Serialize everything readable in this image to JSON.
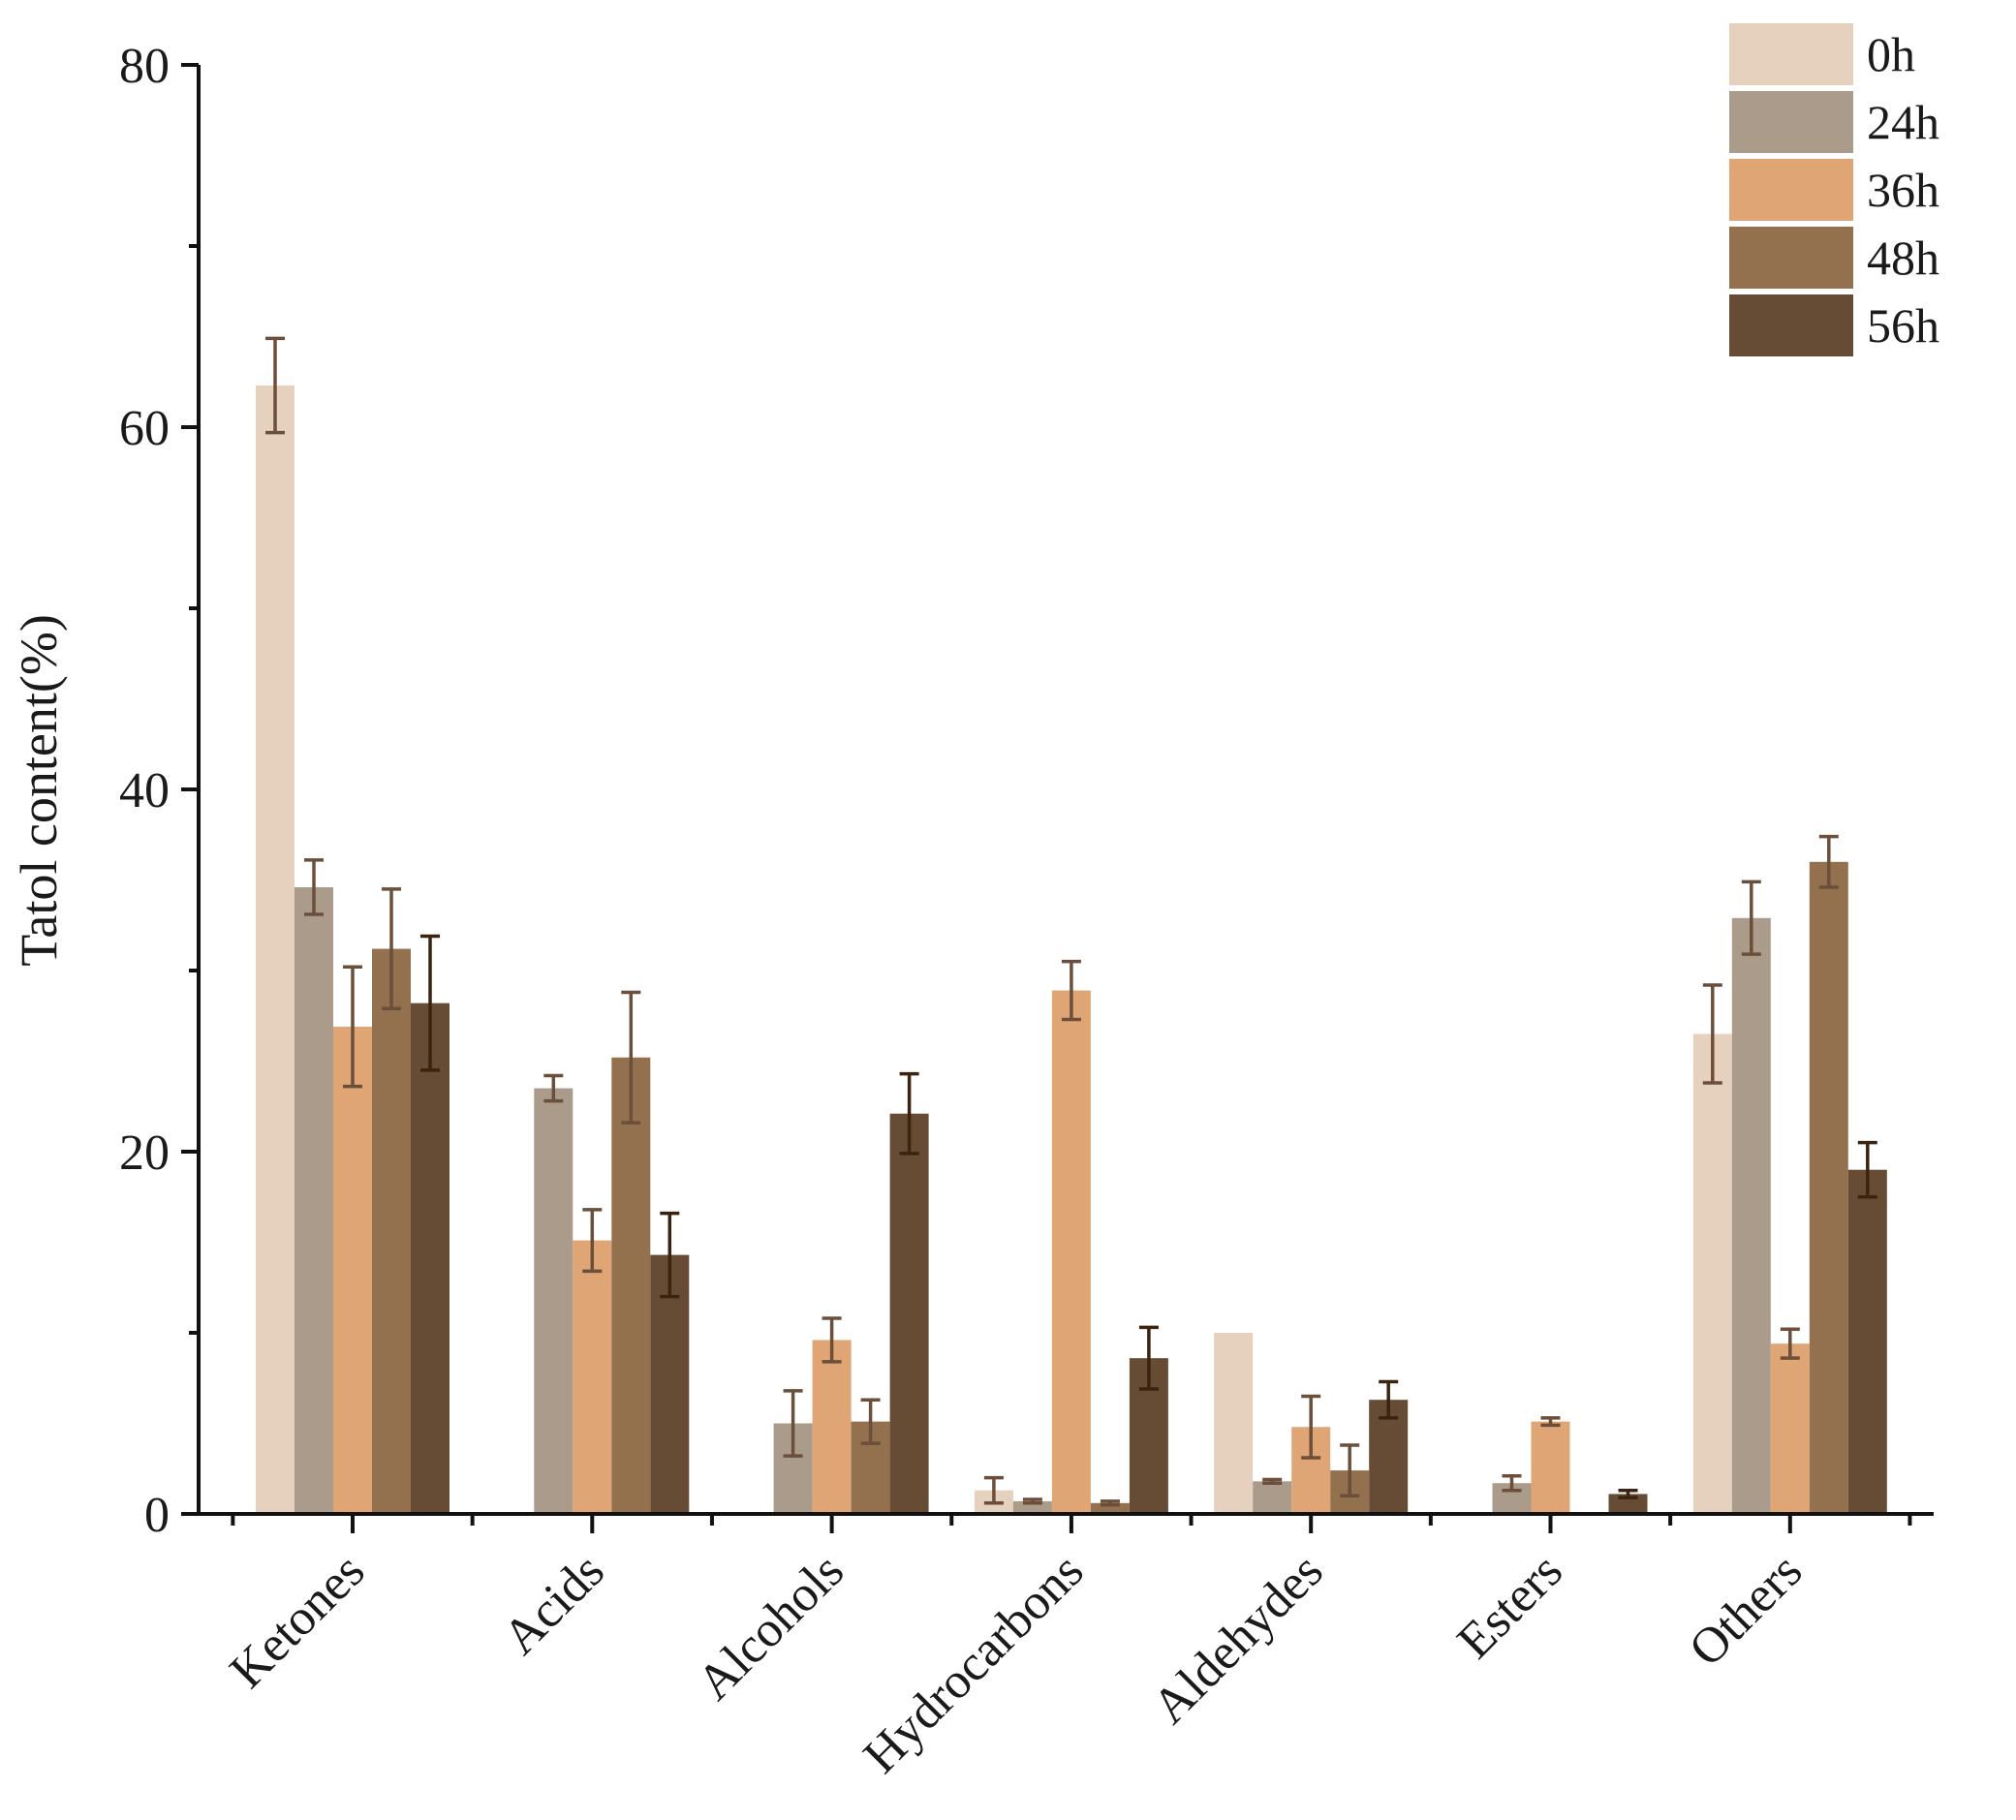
{
  "chart_data": {
    "type": "bar",
    "title": "",
    "xlabel": "",
    "ylabel": "Tatol content(%)",
    "ylim": [
      0,
      80
    ],
    "yticks": [
      0,
      20,
      40,
      60,
      80
    ],
    "grid": false,
    "legend_position": "top-right",
    "categories": [
      "Ketones",
      "Acids",
      "Alcohols",
      "Hydrocarbons",
      "Aldehydes",
      "Esters",
      "Others"
    ],
    "series": [
      {
        "name": "0h",
        "color": "#e6d1bf",
        "error_color": "#6b4f3a",
        "values": [
          62.3,
          0,
          0,
          1.3,
          10.0,
          0,
          26.5
        ],
        "errors": [
          2.6,
          0,
          0,
          0.7,
          0,
          0,
          2.7
        ]
      },
      {
        "name": "24h",
        "color": "#aa9b8b",
        "error_color": "#6b4f3a",
        "values": [
          34.6,
          23.5,
          5.0,
          0.7,
          1.8,
          1.7,
          32.9
        ],
        "errors": [
          1.5,
          0.7,
          1.8,
          0.1,
          0.1,
          0.4,
          2.0
        ]
      },
      {
        "name": "36h",
        "color": "#dfa574",
        "error_color": "#6b4f3a",
        "values": [
          26.9,
          15.1,
          9.6,
          28.9,
          4.8,
          5.1,
          9.4
        ],
        "errors": [
          3.3,
          1.7,
          1.2,
          1.6,
          1.7,
          0.2,
          0.8
        ]
      },
      {
        "name": "48h",
        "color": "#94714e",
        "error_color": "#6b4f3a",
        "values": [
          31.2,
          25.2,
          5.1,
          0.6,
          2.4,
          0,
          36.0
        ],
        "errors": [
          3.3,
          3.6,
          1.2,
          0.1,
          1.4,
          0,
          1.4
        ]
      },
      {
        "name": "56h",
        "color": "#664c35",
        "error_color": "#3a2410",
        "values": [
          28.2,
          14.3,
          22.1,
          8.6,
          6.3,
          1.1,
          19.0
        ],
        "errors": [
          3.7,
          2.3,
          2.2,
          1.7,
          1.0,
          0.2,
          1.5
        ]
      }
    ]
  }
}
